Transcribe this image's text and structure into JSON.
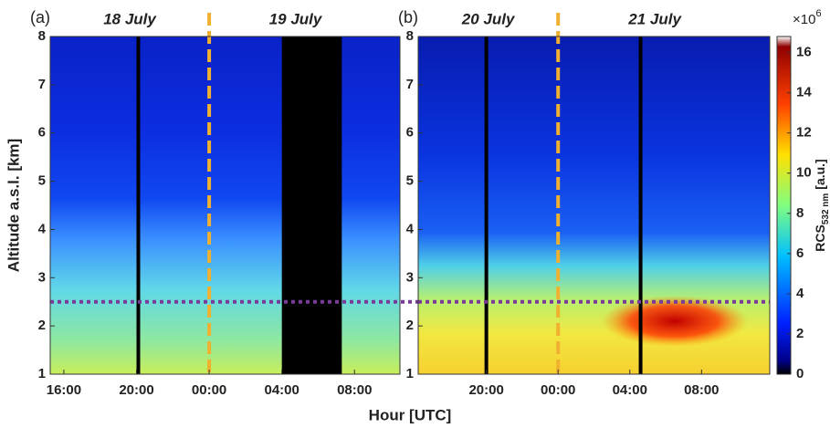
{
  "chart_data": [
    {
      "type": "heatmap",
      "panel_label": "(a)",
      "day_labels": [
        "18 July",
        "19 July"
      ],
      "ylabel": "Altitude a.s.l. [km]",
      "xlim": [
        15.25,
        34.5
      ],
      "ylim": [
        1,
        8
      ],
      "yticks": [
        1,
        2,
        3,
        4,
        5,
        6,
        7,
        8
      ],
      "xticks": [
        {
          "value": 16,
          "label": "16:00"
        },
        {
          "value": 20,
          "label": "20:00"
        },
        {
          "value": 24,
          "label": "00:00"
        },
        {
          "value": 28,
          "label": "04:00"
        },
        {
          "value": 32,
          "label": "08:00"
        }
      ],
      "solid_lines_x": [
        20.1
      ],
      "dashed_lines_x": [
        24
      ],
      "blackout": [
        [
          28,
          31.3
        ]
      ],
      "hline_y": 2.5
    },
    {
      "type": "heatmap",
      "panel_label": "(b)",
      "day_labels": [
        "20 July",
        "21 July"
      ],
      "xlim": [
        16.2,
        35.8
      ],
      "ylim": [
        1,
        8
      ],
      "yticks": [
        1,
        2,
        3,
        4,
        5,
        6,
        7,
        8
      ],
      "xticks": [
        {
          "value": 20,
          "label": "20:00"
        },
        {
          "value": 24,
          "label": "00:00"
        },
        {
          "value": 28,
          "label": "04:00"
        },
        {
          "value": 32,
          "label": "08:00"
        }
      ],
      "solid_lines_x": [
        20,
        28.6
      ],
      "dashed_lines_x": [
        24
      ],
      "blackout": [],
      "hline_y": 2.5
    }
  ],
  "xlabel": "Hour [UTC]",
  "colorbar": {
    "label": "RCS",
    "label_sub": "532 nm",
    "unit": "[a.u.]",
    "multiplier": {
      "base": "×10",
      "exponent": "6"
    },
    "ylim": [
      0,
      16.8
    ],
    "yticks": [
      0,
      2,
      4,
      6,
      8,
      10,
      12,
      14,
      16
    ]
  }
}
